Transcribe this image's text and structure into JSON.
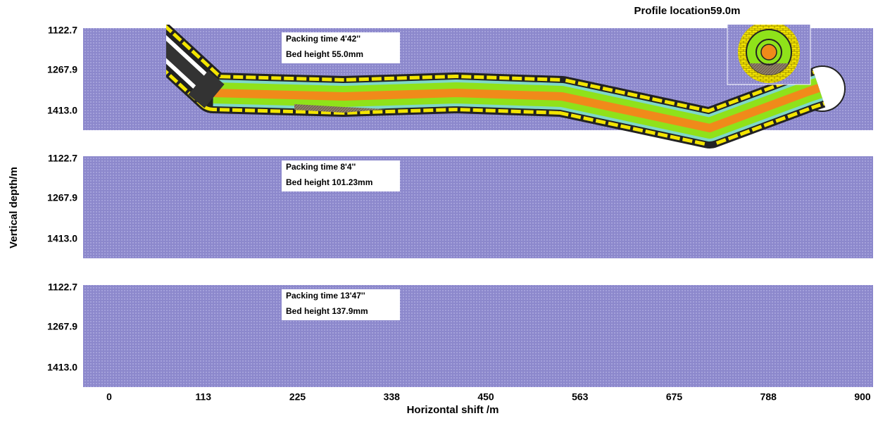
{
  "title": "Profile location59.0m",
  "y_axis_label": "Vertical depth/m",
  "x_axis_label": "Horizontal shift /m",
  "y_ticks": [
    "1122.7",
    "1267.9",
    "1413.0"
  ],
  "x_ticks": [
    "0",
    "113",
    "225",
    "338",
    "450",
    "563",
    "675",
    "788",
    "900"
  ],
  "panels": [
    {
      "time_label": "Packing time 4'42''",
      "height_label": "Bed height  55.0mm"
    },
    {
      "time_label": "Packing time 8'4''",
      "height_label": "Bed height 101.23mm"
    },
    {
      "time_label": "Packing time 13'47''",
      "height_label": "Bed height 137.9mm"
    }
  ]
}
